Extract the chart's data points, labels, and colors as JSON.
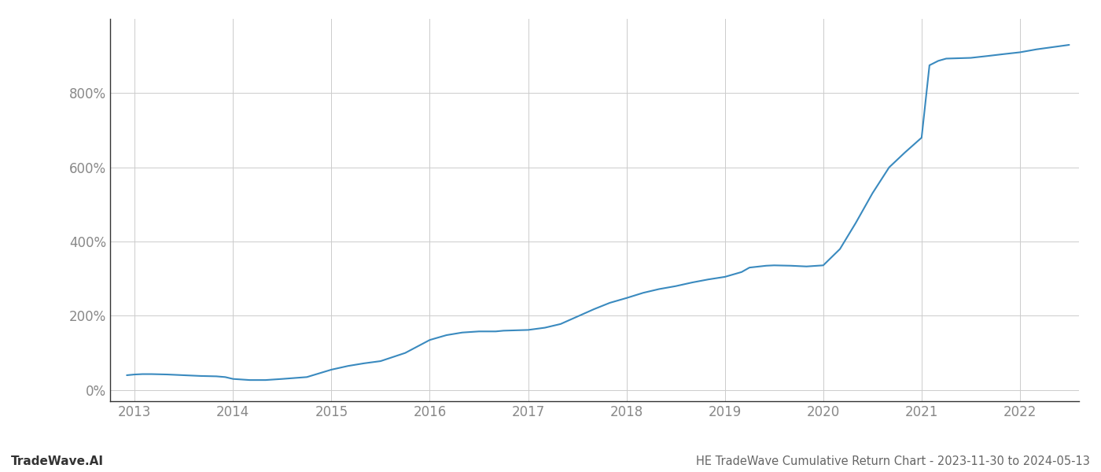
{
  "title": "HE TradeWave Cumulative Return Chart - 2023-11-30 to 2024-05-13",
  "watermark": "TradeWave.AI",
  "line_color": "#3a8abf",
  "background_color": "#ffffff",
  "grid_color": "#cccccc",
  "x_years": [
    2013,
    2014,
    2015,
    2016,
    2017,
    2018,
    2019,
    2020,
    2021,
    2022
  ],
  "x_values": [
    2012.92,
    2013.0,
    2013.08,
    2013.17,
    2013.33,
    2013.5,
    2013.67,
    2013.83,
    2013.92,
    2014.0,
    2014.17,
    2014.33,
    2014.5,
    2014.75,
    2015.0,
    2015.17,
    2015.33,
    2015.5,
    2015.75,
    2016.0,
    2016.17,
    2016.33,
    2016.5,
    2016.67,
    2016.75,
    2017.0,
    2017.17,
    2017.33,
    2017.5,
    2017.67,
    2017.83,
    2018.0,
    2018.17,
    2018.33,
    2018.5,
    2018.67,
    2018.83,
    2019.0,
    2019.17,
    2019.25,
    2019.42,
    2019.5,
    2019.67,
    2019.83,
    2020.0,
    2020.17,
    2020.33,
    2020.5,
    2020.67,
    2020.83,
    2021.0,
    2021.08,
    2021.17,
    2021.25,
    2021.5,
    2021.67,
    2021.83,
    2022.0,
    2022.17,
    2022.5
  ],
  "y_values": [
    40,
    42,
    43,
    43,
    42,
    40,
    38,
    37,
    35,
    30,
    27,
    27,
    30,
    35,
    55,
    65,
    72,
    78,
    100,
    135,
    148,
    155,
    158,
    158,
    160,
    162,
    168,
    178,
    198,
    218,
    235,
    248,
    262,
    272,
    280,
    290,
    298,
    305,
    318,
    330,
    335,
    336,
    335,
    333,
    336,
    380,
    450,
    530,
    600,
    640,
    680,
    875,
    887,
    893,
    895,
    900,
    905,
    910,
    918,
    930
  ],
  "ylim": [
    -30,
    1000
  ],
  "xlim_start": 2012.75,
  "xlim_end": 2022.6,
  "yticks": [
    0,
    200,
    400,
    600,
    800
  ],
  "title_fontsize": 10.5,
  "tick_fontsize": 12,
  "watermark_fontsize": 11,
  "axis_color": "#888888",
  "spine_color": "#333333",
  "title_color": "#666666",
  "watermark_color": "#333333"
}
